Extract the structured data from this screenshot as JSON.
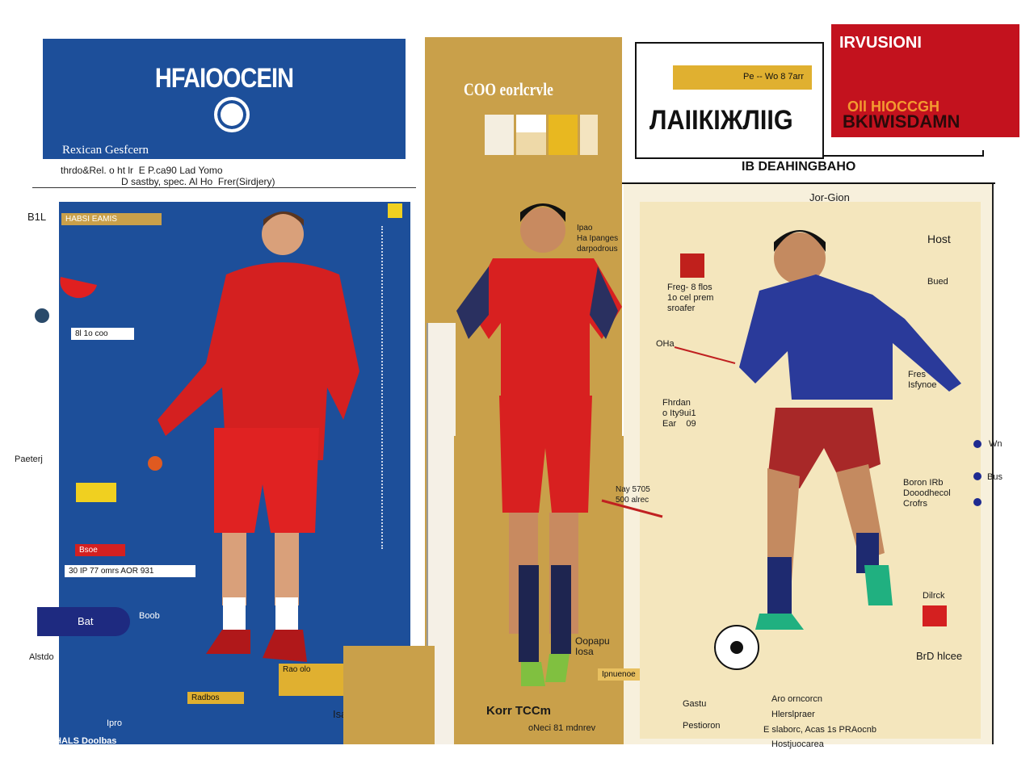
{
  "header": {
    "title": "HFAIOOCEIN",
    "subtitle": "Rexican Gesfcern",
    "caption_line1": "thrdo&Rel. o ht lr  E P.ca90 Lad Yomo",
    "caption_line2": "D sastby, spec. Al Ho  Frer(Sirdjery)"
  },
  "center_panel": {
    "title": "COO eorlcrvle",
    "player_label": "Ipao\nHa Ipanges\ndarpodrous",
    "bottom_label": "Korr TCCm",
    "bottom_sub": "oNeci 81 mdnrev"
  },
  "top_box": {
    "tag": "Pe -- Wo  8 7arr",
    "big_text": "ЛАIIКIЖЛIIG"
  },
  "red_box": {
    "title": "IRVUSIONI",
    "highlight": "Oll HIOCCGH",
    "body": "BKIWISDAMN"
  },
  "section_title": "IB DEAHINGBAHO",
  "right_panel": {
    "title": "Jor-Gion",
    "labels": [
      "Host",
      "Bued",
      "Freg- 8 flos\n1o cel prem\nsroafer",
      "OHa",
      "Fhrdan\no Ity9ui1\nEar    09",
      "Fres\nIsfynoe",
      "Boron IRb\nDooodhecol\nCrofrs",
      "Dilrck",
      "BrD hlcee",
      "Wn",
      "Bus"
    ],
    "legend_left": [
      "Gastu",
      "Pestioron"
    ],
    "legend_right": [
      "Aro orncorcn",
      "Hlerslpraer",
      "E slaborc, Acas 1s PRAocnb"
    ],
    "footer": "Hostjuocarea"
  },
  "left_panel": {
    "tag": "HABSI EAMIS",
    "labels": [
      "B1L",
      "8l 1o coo",
      "Paeterj",
      "Bsoe",
      "30  IP 77 omrs  AOR 931",
      "Bat",
      "Boob",
      "Alstdo",
      "Radbos",
      "HALS Doolbas",
      "Ipro"
    ],
    "mid_labels": [
      "Nay 5705\n500 alrec",
      "Oopapu\nIosa",
      "Ipnuenoe",
      "Rao\nolo",
      "Isaw"
    ]
  },
  "colors": {
    "blue": "#1d4f9a",
    "gold": "#c9a04a",
    "red": "#c3121e",
    "beige": "#f4e6bd"
  }
}
